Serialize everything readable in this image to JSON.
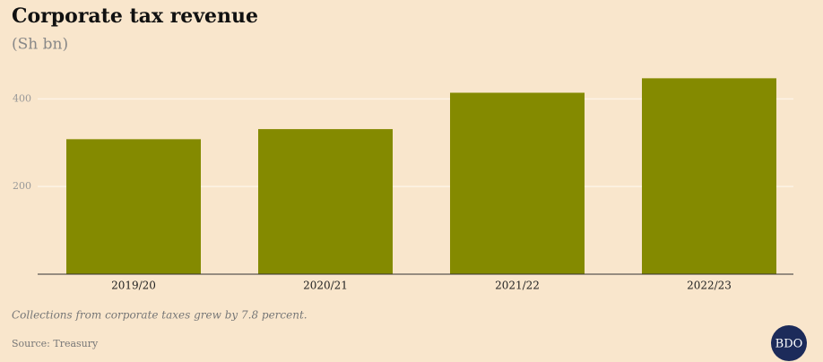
{
  "chart_data": {
    "type": "bar",
    "title": "Corporate tax revenue",
    "subtitle": "(Sh bn)",
    "categories": [
      "2019/20",
      "2020/21",
      "2021/22",
      "2022/23"
    ],
    "values": [
      308,
      331,
      414,
      447
    ],
    "color": "#848a00",
    "ylim": [
      0,
      460
    ],
    "yticks": [
      200,
      400
    ],
    "grid": true,
    "note": "Collections from corporate taxes grew by 7.8 percent.",
    "source": "Source: Treasury",
    "logo": "BDO"
  }
}
